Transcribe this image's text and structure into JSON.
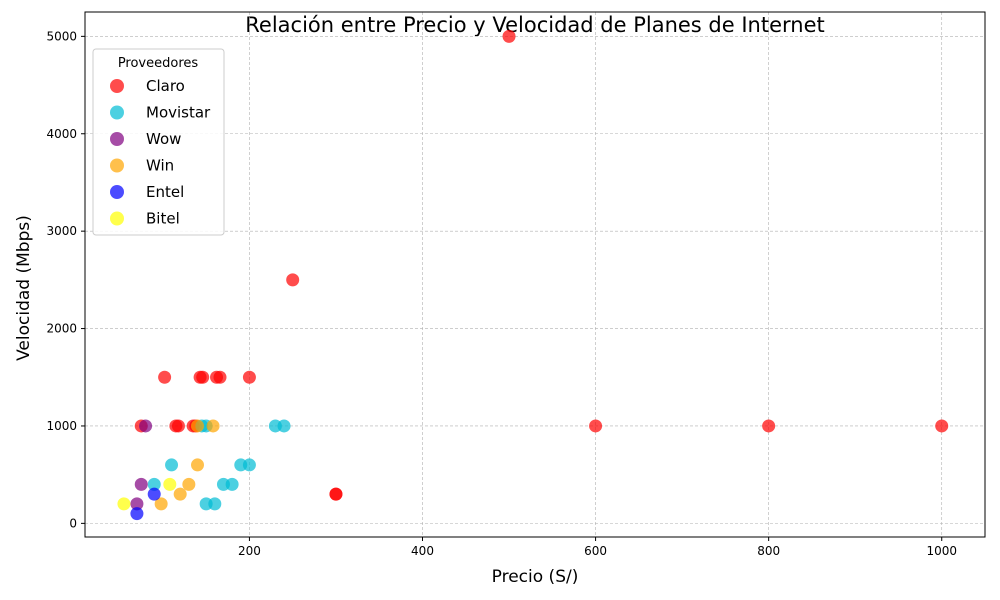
{
  "chart_data": {
    "type": "scatter",
    "title": "Relación entre Precio y Velocidad de Planes de Internet",
    "xlabel": "Precio (S/)",
    "ylabel": "Velocidad (Mbps)",
    "xlim": [
      10,
      1050
    ],
    "ylim": [
      -140,
      5250
    ],
    "xticks": [
      200,
      400,
      600,
      800,
      1000
    ],
    "yticks": [
      0,
      1000,
      2000,
      3000,
      4000,
      5000
    ],
    "grid": true,
    "legend": {
      "title": "Proveedores",
      "placement": "top-left"
    },
    "series": [
      {
        "name": "Claro",
        "color": "#ff0000",
        "points": [
          [
            75,
            1000
          ],
          [
            102,
            1500
          ],
          [
            115,
            1000
          ],
          [
            118,
            1000
          ],
          [
            135,
            1000
          ],
          [
            138,
            1000
          ],
          [
            143,
            1500
          ],
          [
            146,
            1500
          ],
          [
            162,
            1500
          ],
          [
            166,
            1500
          ],
          [
            200,
            1500
          ],
          [
            250,
            2500
          ],
          [
            300,
            300
          ],
          [
            300,
            300
          ],
          [
            500,
            5000
          ],
          [
            600,
            1000
          ],
          [
            800,
            1000
          ],
          [
            1000,
            1000
          ]
        ]
      },
      {
        "name": "Movistar",
        "color": "#00bcd4",
        "points": [
          [
            90,
            400
          ],
          [
            110,
            600
          ],
          [
            145,
            1000
          ],
          [
            150,
            1000
          ],
          [
            150,
            200
          ],
          [
            160,
            200
          ],
          [
            170,
            400
          ],
          [
            180,
            400
          ],
          [
            190,
            600
          ],
          [
            200,
            600
          ],
          [
            230,
            1000
          ],
          [
            240,
            1000
          ]
        ]
      },
      {
        "name": "Wow",
        "color": "#800080",
        "points": [
          [
            70,
            200
          ],
          [
            75,
            400
          ],
          [
            80,
            1000
          ]
        ]
      },
      {
        "name": "Win",
        "color": "#ffa500",
        "points": [
          [
            98,
            200
          ],
          [
            120,
            300
          ],
          [
            130,
            400
          ],
          [
            140,
            600
          ],
          [
            140,
            1000
          ],
          [
            158,
            1000
          ]
        ]
      },
      {
        "name": "Entel",
        "color": "#0000ff",
        "points": [
          [
            70,
            100
          ],
          [
            90,
            300
          ]
        ]
      },
      {
        "name": "Bitel",
        "color": "#ffff00",
        "points": [
          [
            55,
            200
          ],
          [
            108,
            400
          ]
        ]
      }
    ]
  }
}
